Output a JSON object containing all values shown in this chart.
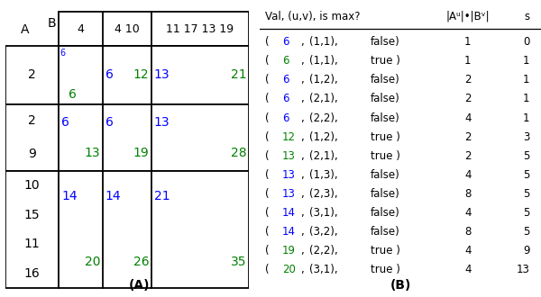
{
  "panel_A": {
    "B_header": [
      "4",
      "4 10",
      "11 17 13 19"
    ],
    "a_group0_vals": [
      "2"
    ],
    "a_group1_vals": [
      "2",
      "9"
    ],
    "a_group2_vals": [
      "10",
      "15",
      "11",
      "16"
    ],
    "g0_cells": [
      {
        "blue": "6",
        "green": "6",
        "superscript": true
      },
      {
        "blue": "6",
        "green": "12"
      },
      {
        "blue": "13",
        "green": "21"
      }
    ],
    "g1_cells": [
      {
        "blue": "6",
        "green": "13"
      },
      {
        "blue": "6",
        "green": "19"
      },
      {
        "blue": "13",
        "green": "28"
      }
    ],
    "g2_cells": [
      {
        "blue": "14",
        "green": "20"
      },
      {
        "blue": "14",
        "green": "26"
      },
      {
        "blue": "21",
        "green": "35"
      }
    ]
  },
  "panel_B": {
    "rows": [
      {
        "val": "6",
        "val_color": "blue",
        "uv": "(1,1)",
        "is_max": "false",
        "size": "1",
        "s": "0"
      },
      {
        "val": "6",
        "val_color": "green",
        "uv": "(1,1)",
        "is_max": "true ",
        "size": "1",
        "s": "1"
      },
      {
        "val": "6",
        "val_color": "blue",
        "uv": "(1,2)",
        "is_max": "false",
        "size": "2",
        "s": "1"
      },
      {
        "val": "6",
        "val_color": "blue",
        "uv": "(2,1)",
        "is_max": "false",
        "size": "2",
        "s": "1"
      },
      {
        "val": "6",
        "val_color": "blue",
        "uv": "(2,2)",
        "is_max": "false",
        "size": "4",
        "s": "1"
      },
      {
        "val": "12",
        "val_color": "green",
        "uv": "(1,2)",
        "is_max": "true ",
        "size": "2",
        "s": "3"
      },
      {
        "val": "13",
        "val_color": "green",
        "uv": "(2,1)",
        "is_max": "true ",
        "size": "2",
        "s": "5"
      },
      {
        "val": "13",
        "val_color": "blue",
        "uv": "(1,3)",
        "is_max": "false",
        "size": "4",
        "s": "5"
      },
      {
        "val": "13",
        "val_color": "blue",
        "uv": "(2,3)",
        "is_max": "false",
        "size": "8",
        "s": "5"
      },
      {
        "val": "14",
        "val_color": "blue",
        "uv": "(3,1)",
        "is_max": "false",
        "size": "4",
        "s": "5"
      },
      {
        "val": "14",
        "val_color": "blue",
        "uv": "(3,2)",
        "is_max": "false",
        "size": "8",
        "s": "5"
      },
      {
        "val": "19",
        "val_color": "green",
        "uv": "(2,2)",
        "is_max": "true ",
        "size": "4",
        "s": "9"
      },
      {
        "val": "20",
        "val_color": "green",
        "uv": "(3,1)",
        "is_max": "true ",
        "size": "4",
        "s": "13"
      }
    ]
  },
  "blue": "#0000FF",
  "green": "#008000",
  "black": "#000000",
  "bg": "#FFFFFF"
}
